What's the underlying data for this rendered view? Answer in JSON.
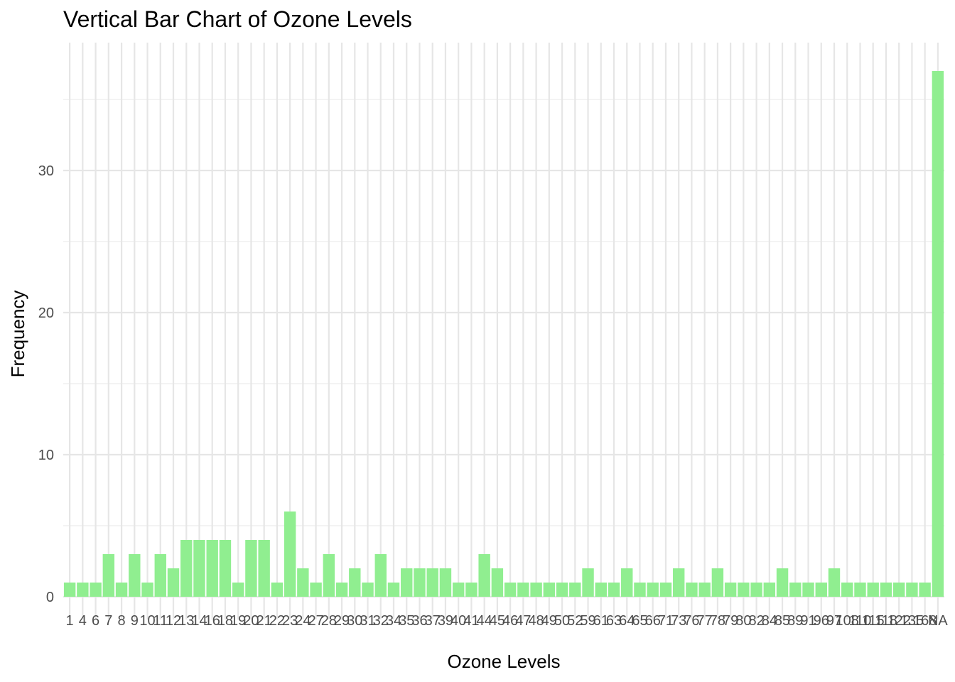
{
  "chart_data": {
    "type": "bar",
    "title": "Vertical Bar Chart of Ozone Levels",
    "xlabel": "Ozone Levels",
    "ylabel": "Frequency",
    "ylim": [
      0,
      37
    ],
    "yticks": [
      0,
      10,
      20,
      30
    ],
    "grid": true,
    "bar_color": "#90EE90",
    "categories": [
      "1",
      "4",
      "6",
      "7",
      "8",
      "9",
      "10",
      "11",
      "12",
      "13",
      "14",
      "16",
      "18",
      "19",
      "20",
      "21",
      "22",
      "23",
      "24",
      "27",
      "28",
      "29",
      "30",
      "31",
      "32",
      "34",
      "35",
      "36",
      "37",
      "39",
      "40",
      "41",
      "44",
      "45",
      "46",
      "47",
      "48",
      "49",
      "50",
      "52",
      "59",
      "61",
      "63",
      "64",
      "65",
      "66",
      "71",
      "73",
      "76",
      "77",
      "78",
      "79",
      "80",
      "82",
      "84",
      "85",
      "89",
      "91",
      "96",
      "97",
      "108",
      "110",
      "115",
      "118",
      "122",
      "135",
      "168",
      "NA"
    ],
    "values": [
      1,
      1,
      1,
      3,
      1,
      3,
      1,
      3,
      2,
      4,
      4,
      4,
      4,
      1,
      4,
      4,
      1,
      6,
      2,
      1,
      3,
      1,
      2,
      1,
      3,
      1,
      2,
      2,
      2,
      2,
      1,
      1,
      3,
      2,
      1,
      1,
      1,
      1,
      1,
      1,
      2,
      1,
      1,
      2,
      1,
      1,
      1,
      2,
      1,
      1,
      2,
      1,
      1,
      1,
      1,
      2,
      1,
      1,
      1,
      2,
      1,
      1,
      1,
      1,
      1,
      1,
      1,
      37
    ]
  }
}
